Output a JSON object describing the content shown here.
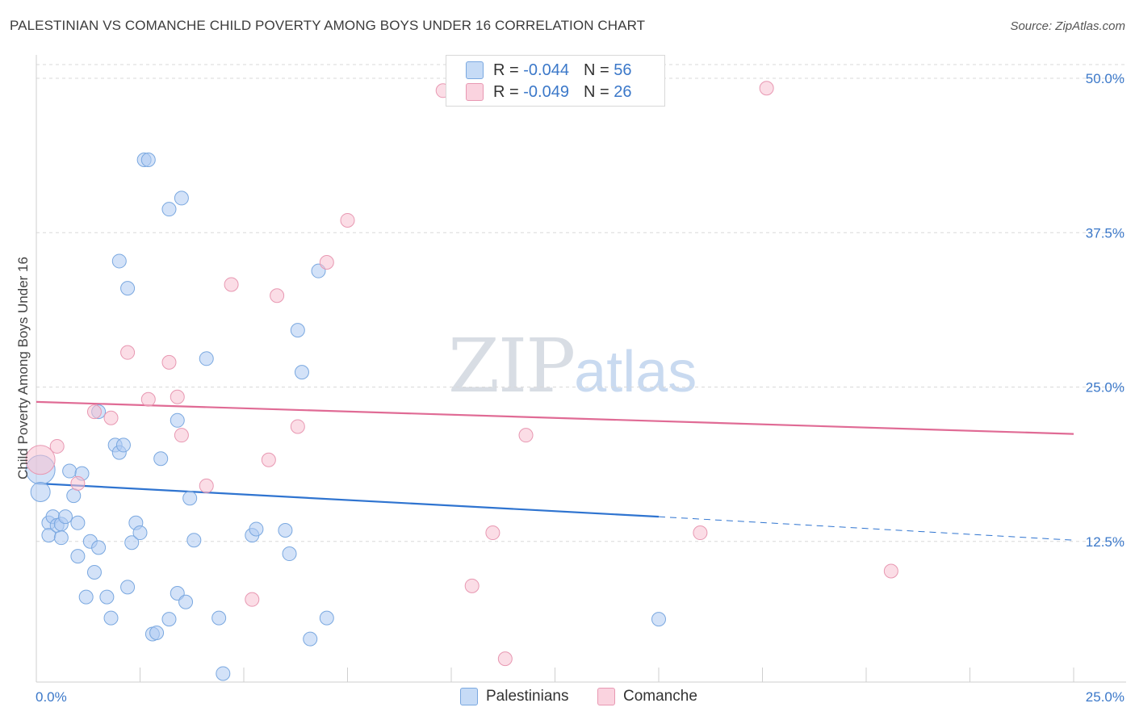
{
  "title": "PALESTINIAN VS COMANCHE CHILD POVERTY AMONG BOYS UNDER 16 CORRELATION CHART",
  "source": "Source: ZipAtlas.com",
  "watermark": {
    "zip": "ZIP",
    "atlas": "atlas"
  },
  "legend": {
    "rows": [
      {
        "r_label": "R = ",
        "r_value": "-0.044",
        "n_label": "N = ",
        "n_value": "56",
        "color": "#aecbf2"
      },
      {
        "r_label": "R = ",
        "r_value": "-0.049",
        "n_label": "N = ",
        "n_value": "26",
        "color": "#f7c1d1"
      }
    ]
  },
  "bottom_legend": [
    {
      "label": "Palestinians",
      "color": "#aecbf2"
    },
    {
      "label": "Comanche",
      "color": "#f7c1d1"
    }
  ],
  "colors": {
    "blue_fill": "#aecbf2",
    "blue_stroke": "#7aa8e0",
    "blue_line": "#2f74d0",
    "pink_fill": "#f7c1d1",
    "pink_stroke": "#e898b2",
    "pink_line": "#e06b95",
    "grid": "#d9d9d9",
    "label": "#3b78c9"
  },
  "chart_data": {
    "type": "scatter",
    "title": "PALESTINIAN VS COMANCHE CHILD POVERTY AMONG BOYS UNDER 16 CORRELATION CHART",
    "xlabel": "",
    "ylabel": "Child Poverty Among Boys Under 16",
    "xlim": [
      0,
      25
    ],
    "ylim": [
      0,
      50
    ],
    "x_tick_labels": [
      "0.0%",
      "25.0%"
    ],
    "y_ticks": [
      12.5,
      25.0,
      37.5,
      50.0
    ],
    "y_tick_labels": [
      "12.5%",
      "25.0%",
      "37.5%",
      "50.0%"
    ],
    "grid": true,
    "legend_position": "top-center",
    "series": [
      {
        "name": "Palestinians",
        "points": [
          [
            0.1,
            18.3
          ],
          [
            0.1,
            16.5
          ],
          [
            0.3,
            14.0
          ],
          [
            0.3,
            13.0
          ],
          [
            0.4,
            14.5
          ],
          [
            0.5,
            13.8
          ],
          [
            0.6,
            13.9
          ],
          [
            0.6,
            12.8
          ],
          [
            0.7,
            14.5
          ],
          [
            0.8,
            18.2
          ],
          [
            0.9,
            16.2
          ],
          [
            1.0,
            14.0
          ],
          [
            1.0,
            11.3
          ],
          [
            1.1,
            18.0
          ],
          [
            1.3,
            12.5
          ],
          [
            1.4,
            10.0
          ],
          [
            1.5,
            12.0
          ],
          [
            1.2,
            8.0
          ],
          [
            1.7,
            8.0
          ],
          [
            1.8,
            6.3
          ],
          [
            1.5,
            23.0
          ],
          [
            1.9,
            20.3
          ],
          [
            2.0,
            19.7
          ],
          [
            2.1,
            20.3
          ],
          [
            2.0,
            35.2
          ],
          [
            2.2,
            33.0
          ],
          [
            2.2,
            8.8
          ],
          [
            2.3,
            12.4
          ],
          [
            2.4,
            14.0
          ],
          [
            2.5,
            13.2
          ],
          [
            2.6,
            43.4
          ],
          [
            2.7,
            43.4
          ],
          [
            2.8,
            5.0
          ],
          [
            2.9,
            5.1
          ],
          [
            3.0,
            19.2
          ],
          [
            3.2,
            6.2
          ],
          [
            3.2,
            39.4
          ],
          [
            3.4,
            22.3
          ],
          [
            3.4,
            8.3
          ],
          [
            3.5,
            40.3
          ],
          [
            3.6,
            7.6
          ],
          [
            3.7,
            16.0
          ],
          [
            3.8,
            12.6
          ],
          [
            4.1,
            27.3
          ],
          [
            4.4,
            6.3
          ],
          [
            4.5,
            1.8
          ],
          [
            5.2,
            13.0
          ],
          [
            5.3,
            13.5
          ],
          [
            6.0,
            13.4
          ],
          [
            6.1,
            11.5
          ],
          [
            6.3,
            29.6
          ],
          [
            6.4,
            26.2
          ],
          [
            6.6,
            4.6
          ],
          [
            6.8,
            34.4
          ],
          [
            7.0,
            6.3
          ],
          [
            15.0,
            6.2
          ]
        ],
        "trend": {
          "x0": 0,
          "y0": 17.2,
          "x1": 15,
          "y1": 14.5,
          "dashed_to_x": 25,
          "dashed_to_y": 12.6
        }
      },
      {
        "name": "Comanche",
        "points": [
          [
            0.1,
            19.1
          ],
          [
            0.5,
            20.2
          ],
          [
            1.0,
            17.2
          ],
          [
            1.4,
            23.0
          ],
          [
            1.8,
            22.5
          ],
          [
            2.2,
            27.8
          ],
          [
            2.7,
            24.0
          ],
          [
            3.2,
            27.0
          ],
          [
            3.4,
            24.2
          ],
          [
            3.5,
            21.1
          ],
          [
            4.1,
            17.0
          ],
          [
            4.7,
            33.3
          ],
          [
            5.2,
            7.8
          ],
          [
            5.6,
            19.1
          ],
          [
            5.8,
            32.4
          ],
          [
            6.3,
            21.8
          ],
          [
            7.0,
            35.1
          ],
          [
            7.5,
            38.5
          ],
          [
            9.8,
            49.0
          ],
          [
            10.5,
            8.9
          ],
          [
            11.0,
            13.2
          ],
          [
            11.3,
            3.0
          ],
          [
            11.8,
            21.1
          ],
          [
            16.0,
            13.2
          ],
          [
            17.6,
            49.2
          ],
          [
            20.6,
            10.1
          ]
        ],
        "trend": {
          "x0": 0,
          "y0": 23.8,
          "x1": 25,
          "y1": 21.2
        }
      }
    ]
  }
}
